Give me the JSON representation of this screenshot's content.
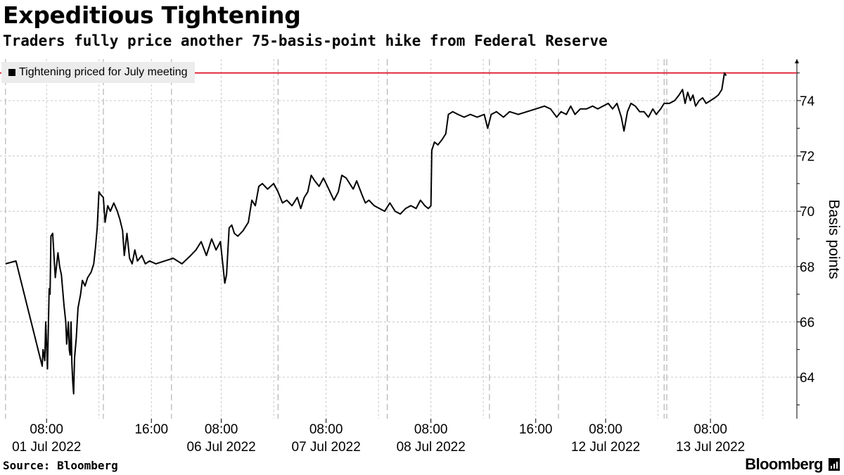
{
  "header": {
    "title": "Expeditious Tightening",
    "subtitle": "Traders fully price another 75-basis-point hike from Federal Reserve"
  },
  "footer": {
    "source": "Source: Bloomberg",
    "brand": "Bloomberg"
  },
  "colors": {
    "series": "#000000",
    "reference_line": "#e0263a",
    "grid": "#c8c8c8",
    "legend_bg": "#ececec"
  },
  "icons": {
    "brand": "bloomberg-terminal-icon"
  },
  "chart_data": {
    "type": "line",
    "title": "Expeditious Tightening",
    "subtitle": "Traders fully price another 75-basis-point hike from Federal Reserve",
    "ylabel": "Basis points",
    "xlabel": "",
    "ylim": [
      62.5,
      75.5
    ],
    "yticks": [
      64,
      66,
      68,
      70,
      72,
      74
    ],
    "y_axis_side": "right",
    "grid": true,
    "legend_position": "top-left",
    "reference_line": {
      "y": 75
    },
    "x_ticks": [
      {
        "label": "08:00",
        "date": "01 Jul 2022",
        "x": 0.5
      },
      {
        "label": "16:00",
        "date": "",
        "x": 12.5
      },
      {
        "label": "08:00",
        "date": "06 Jul 2022",
        "x": 20.5
      },
      {
        "label": "08:00",
        "date": "07 Jul 2022",
        "x": 32.5
      },
      {
        "label": "08:00",
        "date": "08 Jul 2022",
        "x": 44.5
      },
      {
        "label": "16:00",
        "date": "",
        "x": 56.5
      },
      {
        "label": "08:00",
        "date": "12 Jul 2022",
        "x": 64.5
      },
      {
        "label": "08:00",
        "date": "13 Jul 2022",
        "x": 76.5
      }
    ],
    "series": [
      {
        "name": "Tightening priced for July meeting",
        "points": [
          [
            -4.2,
            68.1
          ],
          [
            -3.0,
            68.2
          ],
          [
            0.0,
            64.4
          ],
          [
            0.1,
            65.0
          ],
          [
            0.3,
            64.6
          ],
          [
            0.4,
            66.0
          ],
          [
            0.6,
            64.3
          ],
          [
            0.8,
            67.2
          ],
          [
            0.9,
            67.0
          ],
          [
            1.0,
            69.1
          ],
          [
            1.2,
            69.2
          ],
          [
            1.5,
            67.6
          ],
          [
            1.8,
            68.5
          ],
          [
            2.0,
            68.0
          ],
          [
            2.2,
            67.7
          ],
          [
            2.5,
            66.6
          ],
          [
            2.7,
            66.0
          ],
          [
            2.8,
            65.2
          ],
          [
            3.0,
            66.0
          ],
          [
            3.1,
            65.0
          ],
          [
            3.2,
            64.8
          ],
          [
            3.3,
            66.0
          ],
          [
            3.4,
            64.5
          ],
          [
            3.5,
            63.8
          ],
          [
            3.6,
            63.4
          ],
          [
            3.7,
            64.7
          ],
          [
            3.9,
            65.4
          ],
          [
            4.1,
            66.5
          ],
          [
            4.4,
            67.0
          ],
          [
            4.6,
            67.5
          ],
          [
            4.9,
            67.3
          ],
          [
            5.2,
            67.6
          ],
          [
            5.6,
            67.8
          ],
          [
            5.9,
            68.1
          ],
          [
            6.1,
            68.7
          ],
          [
            6.3,
            69.4
          ],
          [
            6.5,
            70.7
          ],
          [
            6.7,
            70.6
          ],
          [
            7.0,
            70.5
          ],
          [
            7.2,
            69.6
          ],
          [
            7.5,
            70.2
          ],
          [
            7.8,
            70.0
          ],
          [
            8.2,
            70.3
          ],
          [
            8.6,
            70.0
          ],
          [
            8.9,
            69.7
          ],
          [
            9.2,
            69.3
          ],
          [
            9.4,
            68.4
          ],
          [
            9.7,
            69.2
          ],
          [
            10.0,
            68.3
          ],
          [
            10.3,
            68.1
          ],
          [
            10.6,
            68.6
          ],
          [
            10.9,
            68.2
          ],
          [
            11.4,
            68.4
          ],
          [
            11.8,
            68.1
          ],
          [
            12.3,
            68.2
          ],
          [
            13.0,
            68.1
          ],
          [
            14.0,
            68.2
          ],
          [
            15.0,
            68.3
          ],
          [
            16.0,
            68.1
          ],
          [
            17.0,
            68.4
          ],
          [
            17.6,
            68.6
          ],
          [
            18.2,
            68.9
          ],
          [
            18.8,
            68.4
          ],
          [
            19.4,
            69.0
          ],
          [
            19.9,
            68.6
          ],
          [
            20.4,
            68.9
          ],
          [
            20.9,
            67.4
          ],
          [
            21.1,
            67.7
          ],
          [
            21.4,
            69.4
          ],
          [
            21.7,
            69.5
          ],
          [
            22.0,
            69.2
          ],
          [
            22.4,
            69.1
          ],
          [
            23.0,
            69.3
          ],
          [
            23.6,
            69.6
          ],
          [
            24.0,
            70.4
          ],
          [
            24.4,
            70.2
          ],
          [
            24.8,
            70.9
          ],
          [
            25.2,
            71.0
          ],
          [
            25.8,
            70.8
          ],
          [
            26.5,
            71.0
          ],
          [
            27.0,
            70.7
          ],
          [
            27.5,
            70.3
          ],
          [
            28.0,
            70.4
          ],
          [
            28.6,
            70.2
          ],
          [
            29.2,
            70.5
          ],
          [
            29.6,
            70.1
          ],
          [
            30.0,
            70.5
          ],
          [
            30.4,
            70.7
          ],
          [
            30.8,
            71.3
          ],
          [
            31.2,
            71.1
          ],
          [
            31.7,
            70.9
          ],
          [
            32.2,
            71.2
          ],
          [
            32.8,
            70.8
          ],
          [
            33.4,
            70.4
          ],
          [
            33.9,
            70.7
          ],
          [
            34.3,
            71.3
          ],
          [
            34.8,
            71.2
          ],
          [
            35.2,
            71.0
          ],
          [
            35.6,
            70.8
          ],
          [
            36.0,
            71.1
          ],
          [
            36.6,
            70.6
          ],
          [
            37.0,
            70.3
          ],
          [
            37.4,
            70.4
          ],
          [
            38.0,
            70.2
          ],
          [
            38.6,
            70.1
          ],
          [
            39.2,
            70.0
          ],
          [
            39.8,
            70.3
          ],
          [
            40.4,
            70.0
          ],
          [
            41.0,
            69.9
          ],
          [
            41.6,
            70.1
          ],
          [
            42.2,
            70.2
          ],
          [
            42.8,
            70.1
          ],
          [
            43.3,
            70.4
          ],
          [
            43.8,
            70.2
          ],
          [
            44.2,
            70.1
          ],
          [
            44.5,
            70.2
          ],
          [
            44.6,
            72.2
          ],
          [
            44.9,
            72.5
          ],
          [
            45.3,
            72.4
          ],
          [
            45.8,
            72.6
          ],
          [
            46.2,
            72.8
          ],
          [
            46.5,
            73.5
          ],
          [
            47.0,
            73.6
          ],
          [
            47.6,
            73.5
          ],
          [
            48.3,
            73.4
          ],
          [
            49.0,
            73.5
          ],
          [
            49.8,
            73.4
          ],
          [
            50.6,
            73.5
          ],
          [
            51.0,
            73.0
          ],
          [
            51.4,
            73.5
          ],
          [
            52.0,
            73.6
          ],
          [
            52.8,
            73.4
          ],
          [
            53.5,
            73.6
          ],
          [
            54.5,
            73.5
          ],
          [
            55.5,
            73.6
          ],
          [
            56.5,
            73.7
          ],
          [
            57.5,
            73.8
          ],
          [
            58.2,
            73.7
          ],
          [
            58.9,
            73.4
          ],
          [
            59.4,
            73.6
          ],
          [
            60.0,
            73.5
          ],
          [
            60.5,
            73.8
          ],
          [
            61.0,
            73.5
          ],
          [
            61.6,
            73.7
          ],
          [
            62.3,
            73.7
          ],
          [
            63.0,
            73.8
          ],
          [
            63.6,
            73.7
          ],
          [
            64.2,
            73.8
          ],
          [
            64.8,
            73.9
          ],
          [
            65.3,
            73.7
          ],
          [
            65.8,
            73.9
          ],
          [
            66.3,
            73.4
          ],
          [
            66.6,
            72.9
          ],
          [
            67.0,
            73.6
          ],
          [
            67.4,
            73.9
          ],
          [
            67.9,
            73.8
          ],
          [
            68.4,
            73.6
          ],
          [
            68.9,
            73.6
          ],
          [
            69.4,
            73.4
          ],
          [
            69.9,
            73.7
          ],
          [
            70.3,
            73.5
          ],
          [
            70.8,
            73.7
          ],
          [
            71.2,
            73.9
          ],
          [
            71.8,
            73.9
          ],
          [
            72.4,
            74.0
          ],
          [
            72.9,
            74.2
          ],
          [
            73.3,
            74.4
          ],
          [
            73.6,
            73.9
          ],
          [
            73.9,
            74.3
          ],
          [
            74.2,
            74.0
          ],
          [
            74.5,
            74.2
          ],
          [
            74.8,
            73.8
          ],
          [
            75.2,
            74.0
          ],
          [
            75.6,
            74.1
          ],
          [
            76.0,
            73.9
          ],
          [
            76.5,
            74.0
          ],
          [
            77.0,
            74.1
          ],
          [
            77.4,
            74.2
          ],
          [
            77.8,
            74.4
          ],
          [
            78.1,
            75.0
          ],
          [
            78.3,
            74.9
          ]
        ]
      }
    ]
  }
}
